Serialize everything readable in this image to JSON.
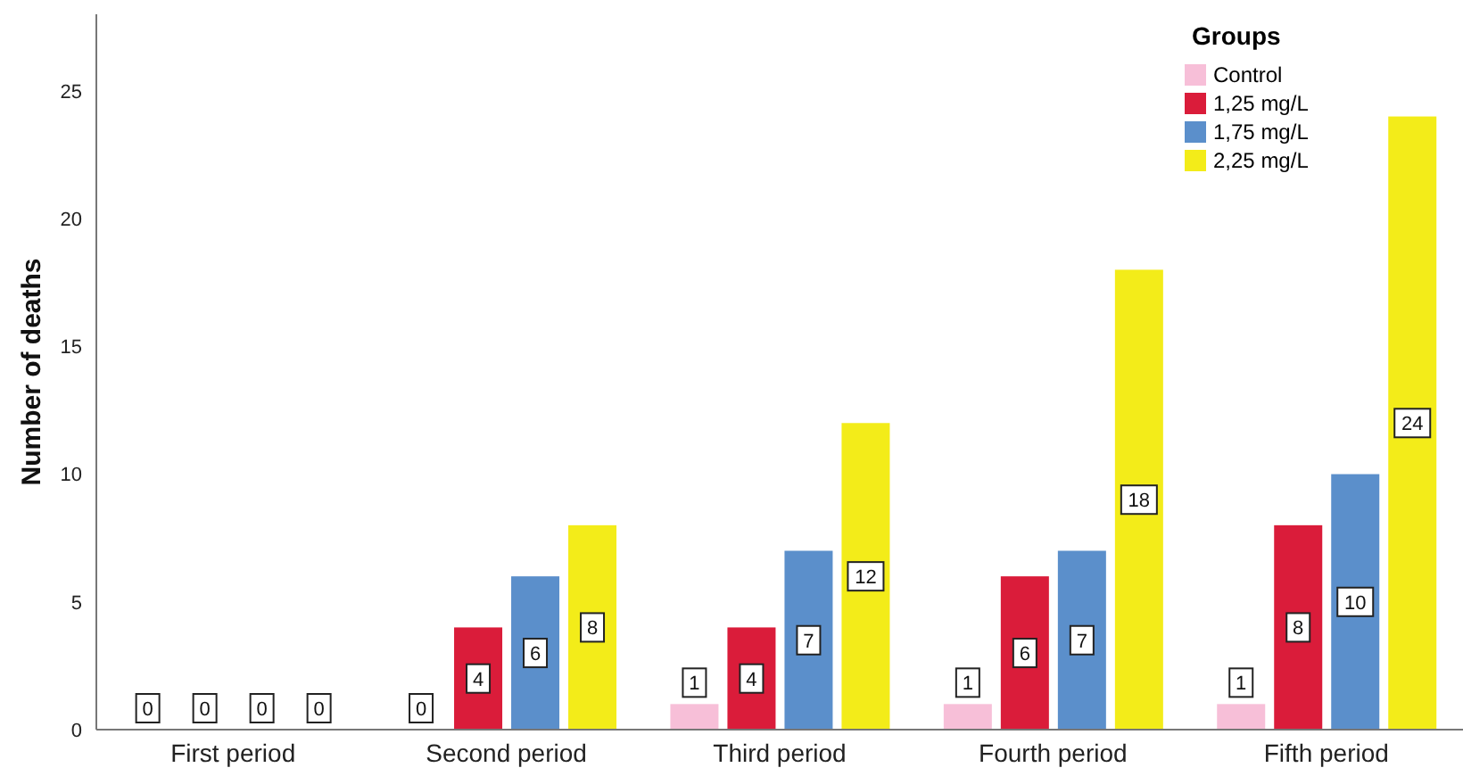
{
  "chart_data": {
    "type": "bar",
    "ylabel": "Number of deaths",
    "legend_title": "Groups",
    "categories": [
      "First period",
      "Second period",
      "Third period",
      "Fourth period",
      "Fifth period"
    ],
    "series": [
      {
        "name": "Control",
        "color": "#f7bfd8",
        "values": [
          0,
          0,
          1,
          1,
          1
        ]
      },
      {
        "name": "1,25 mg/L",
        "color": "#da1c3a",
        "values": [
          0,
          4,
          4,
          6,
          8
        ]
      },
      {
        "name": "1,75 mg/L",
        "color": "#5b8fcb",
        "values": [
          0,
          6,
          7,
          7,
          10
        ]
      },
      {
        "name": "2,25 mg/L",
        "color": "#f3ec19",
        "values": [
          0,
          8,
          12,
          18,
          24
        ]
      }
    ],
    "ylim": [
      0,
      28
    ],
    "yticks": [
      0,
      5,
      10,
      15,
      20,
      25
    ],
    "grid": false,
    "legend": "top right",
    "data_labels": true
  }
}
